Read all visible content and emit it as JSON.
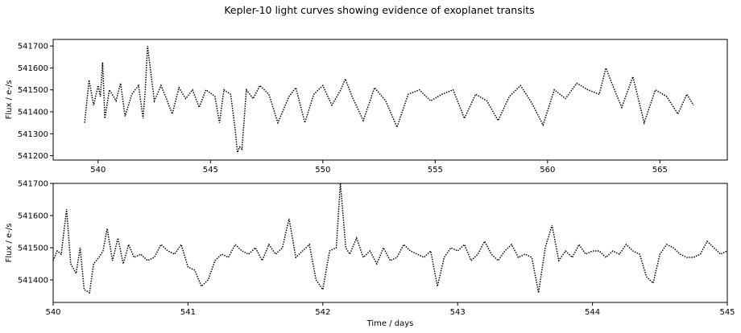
{
  "figure": {
    "title": "Kepler-10 light curves showing evidence of exoplanet transits",
    "line_color": "#000000",
    "line_style": "dotted"
  },
  "chart_data": [
    {
      "type": "line",
      "title": "",
      "xlabel": "",
      "ylabel": "Flux / e-/s",
      "xlim": [
        538,
        568
      ],
      "ylim": [
        541180,
        541730
      ],
      "grid": false,
      "xticks": [
        540,
        545,
        550,
        555,
        560,
        565
      ],
      "xtick_labels": [
        "540",
        "545",
        "550",
        "555",
        "560",
        "565"
      ],
      "yticks": [
        541200,
        541300,
        541400,
        541500,
        541600,
        541700
      ],
      "ytick_labels": [
        "541200",
        "541300",
        "541400",
        "541500",
        "541600",
        "541700"
      ],
      "series": [
        {
          "x": [
            539.4,
            539.6,
            539.8,
            540.0,
            540.1,
            540.2,
            540.3,
            540.5,
            540.8,
            541.0,
            541.2,
            541.5,
            541.8,
            542.0,
            542.1,
            542.2,
            542.5,
            542.8,
            543.0,
            543.3,
            543.6,
            543.9,
            544.2,
            544.5,
            544.8,
            545.2,
            545.4,
            545.6,
            545.9,
            546.1,
            546.2,
            546.3,
            546.4,
            546.6,
            546.9,
            547.2,
            547.6,
            548.0,
            548.5,
            548.8,
            549.2,
            549.6,
            550.0,
            550.4,
            550.8,
            551.0,
            551.3,
            551.8,
            552.3,
            552.8,
            553.3,
            553.8,
            554.3,
            554.8,
            555.3,
            555.8,
            556.3,
            556.8,
            557.3,
            557.8,
            558.3,
            558.8,
            559.3,
            559.8,
            560.3,
            560.8,
            561.3,
            561.8,
            562.3,
            562.6,
            562.9,
            563.3,
            563.8,
            564.3,
            564.8,
            565.3,
            565.8,
            566.2,
            566.5
          ],
          "y": [
            541350,
            541545,
            541430,
            541520,
            541470,
            541625,
            541370,
            541500,
            541450,
            541530,
            541380,
            541480,
            541520,
            541370,
            541500,
            541700,
            541450,
            541520,
            541470,
            541390,
            541510,
            541460,
            541500,
            541420,
            541500,
            541470,
            541350,
            541500,
            541480,
            541320,
            541215,
            541240,
            541230,
            541500,
            541460,
            541520,
            541480,
            541350,
            541470,
            541510,
            541350,
            541480,
            541520,
            541430,
            541500,
            541550,
            541470,
            541360,
            541510,
            541450,
            541330,
            541480,
            541500,
            541450,
            541480,
            541500,
            541370,
            541480,
            541450,
            541360,
            541470,
            541520,
            541440,
            541340,
            541500,
            541460,
            541530,
            541500,
            541480,
            541600,
            541520,
            541420,
            541560,
            541350,
            541500,
            541470,
            541390,
            541480,
            541430
          ]
        }
      ]
    },
    {
      "type": "line",
      "title": "",
      "xlabel": "Time / days",
      "ylabel": "Flux / e-/s",
      "xlim": [
        540,
        545
      ],
      "ylim": [
        541330,
        541700
      ],
      "grid": false,
      "xticks": [
        540,
        541,
        542,
        543,
        544,
        545
      ],
      "xtick_labels": [
        "540",
        "541",
        "542",
        "543",
        "544",
        "545"
      ],
      "yticks": [
        541400,
        541500,
        541600,
        541700
      ],
      "ytick_labels": [
        "541400",
        "541500",
        "541600",
        "541700"
      ],
      "series": [
        {
          "x": [
            540.0,
            540.03,
            540.06,
            540.1,
            540.13,
            540.17,
            540.2,
            540.23,
            540.27,
            540.3,
            540.34,
            540.37,
            540.4,
            540.44,
            540.48,
            540.52,
            540.56,
            540.6,
            540.65,
            540.7,
            540.75,
            540.8,
            540.85,
            540.9,
            540.95,
            541.0,
            541.05,
            541.1,
            541.15,
            541.2,
            541.25,
            541.3,
            541.35,
            541.4,
            541.45,
            541.5,
            541.55,
            541.6,
            541.65,
            541.7,
            541.75,
            541.8,
            541.85,
            541.9,
            541.95,
            542.0,
            542.05,
            542.1,
            542.13,
            542.17,
            542.2,
            542.25,
            542.3,
            542.35,
            542.4,
            542.45,
            542.5,
            542.55,
            542.6,
            542.65,
            542.7,
            542.75,
            542.8,
            542.85,
            542.9,
            542.95,
            543.0,
            543.05,
            543.1,
            543.15,
            543.2,
            543.25,
            543.3,
            543.35,
            543.4,
            543.45,
            543.5,
            543.55,
            543.6,
            543.65,
            543.7,
            543.75,
            543.8,
            543.85,
            543.9,
            543.95,
            544.0,
            544.05,
            544.1,
            544.15,
            544.2,
            544.25,
            544.3,
            544.35,
            544.4,
            544.45,
            544.5,
            544.55,
            544.6,
            544.65,
            544.7,
            544.75,
            544.8,
            544.85,
            544.9,
            544.95,
            545.0
          ],
          "y": [
            541460,
            541490,
            541480,
            541620,
            541450,
            541420,
            541500,
            541370,
            541360,
            541450,
            541470,
            541490,
            541560,
            541460,
            541530,
            541450,
            541510,
            541470,
            541480,
            541460,
            541470,
            541510,
            541490,
            541480,
            541510,
            541440,
            541430,
            541380,
            541400,
            541460,
            541480,
            541470,
            541510,
            541490,
            541480,
            541500,
            541460,
            541510,
            541480,
            541500,
            541590,
            541470,
            541490,
            541510,
            541400,
            541370,
            541490,
            541500,
            541700,
            541500,
            541480,
            541530,
            541470,
            541490,
            541450,
            541500,
            541460,
            541470,
            541510,
            541490,
            541480,
            541470,
            541490,
            541380,
            541470,
            541500,
            541490,
            541510,
            541460,
            541480,
            541520,
            541480,
            541460,
            541490,
            541510,
            541470,
            541480,
            541470,
            541360,
            541500,
            541570,
            541460,
            541490,
            541470,
            541510,
            541480,
            541490,
            541490,
            541470,
            541490,
            541480,
            541510,
            541490,
            541480,
            541410,
            541390,
            541480,
            541510,
            541500,
            541480,
            541470,
            541470,
            541480,
            541520,
            541500,
            541480,
            541490
          ]
        }
      ]
    }
  ]
}
